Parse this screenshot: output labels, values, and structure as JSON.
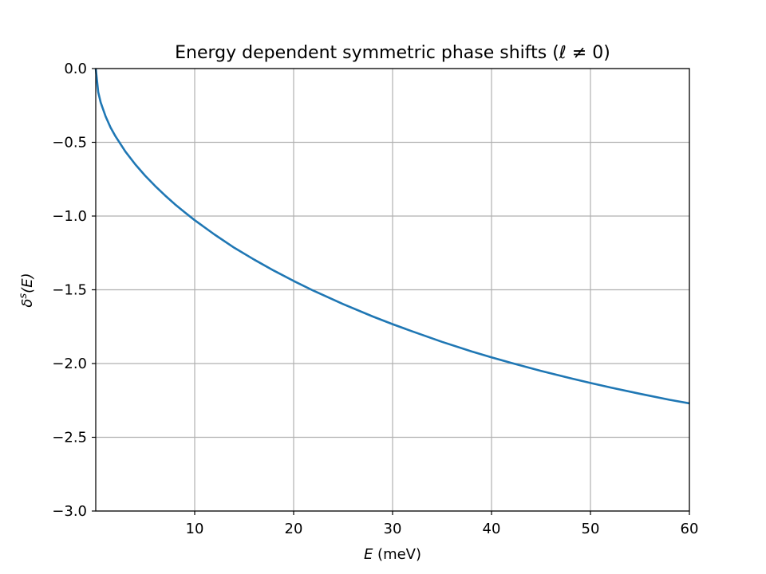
{
  "chart_data": {
    "type": "line",
    "title": "Energy dependent symmetric phase shifts (ℓ ≠ 0)",
    "xlabel": {
      "var": "E",
      "unit": " (meV)"
    },
    "ylabel": {
      "base": "δ",
      "sup": "s",
      "arg": "(E)"
    },
    "xlim": [
      0,
      60
    ],
    "ylim": [
      -3.0,
      0.0
    ],
    "xticks": [
      10,
      20,
      30,
      40,
      50,
      60
    ],
    "xtick_labels": [
      "10",
      "20",
      "30",
      "40",
      "50",
      "60"
    ],
    "yticks": [
      0.0,
      -0.5,
      -1.0,
      -1.5,
      -2.0,
      -2.5,
      -3.0
    ],
    "ytick_labels": [
      "0.0",
      "−0.5",
      "−1.0",
      "−1.5",
      "−2.0",
      "−2.5",
      "−3.0"
    ],
    "grid": true,
    "legend": false,
    "series": [
      {
        "color": "#1f77b4",
        "x": [
          0,
          0.25,
          0.5,
          1,
          1.5,
          2,
          3,
          4,
          5,
          6,
          7,
          8,
          9,
          10,
          12,
          14,
          16,
          18,
          20,
          22,
          25,
          28,
          30,
          32,
          35,
          38,
          40,
          42,
          45,
          48,
          50,
          52,
          55,
          58,
          60
        ],
        "y": [
          0.0,
          -0.16,
          -0.23,
          -0.325,
          -0.4,
          -0.46,
          -0.563,
          -0.65,
          -0.727,
          -0.796,
          -0.86,
          -0.92,
          -0.975,
          -1.028,
          -1.125,
          -1.215,
          -1.295,
          -1.37,
          -1.44,
          -1.506,
          -1.597,
          -1.681,
          -1.733,
          -1.782,
          -1.853,
          -1.918,
          -1.958,
          -1.996,
          -2.05,
          -2.1,
          -2.132,
          -2.162,
          -2.205,
          -2.246,
          -2.27
        ]
      }
    ]
  }
}
